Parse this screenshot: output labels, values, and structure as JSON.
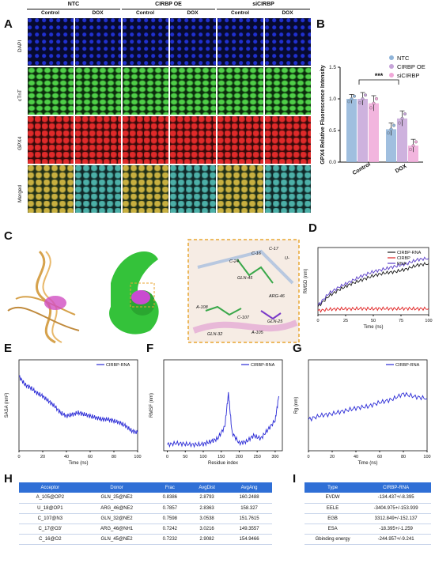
{
  "panels": {
    "a": "A",
    "b": "B",
    "c": "C",
    "d": "D",
    "e": "E",
    "f": "F",
    "g": "G",
    "h": "H",
    "i": "I"
  },
  "microscopy": {
    "groups": [
      "NTC",
      "CIRBP OE",
      "siCIRBP"
    ],
    "columns": [
      "Control",
      "DOX",
      "Control",
      "DOX",
      "Control",
      "DOX"
    ],
    "rows": [
      "DAPI",
      "cTnT",
      "GPX4",
      "Merged"
    ]
  },
  "colors": {
    "ntc": "#8fb4d9",
    "oe": "#c6a4d8",
    "si": "#f0a8d8",
    "rmsd_complex": "#1a1a1a",
    "rmsd_cirbp": "#e02020",
    "rmsd_rna": "#5a3dc8",
    "blue": "#2b2bd6",
    "table_header": "#2f6fd6",
    "dash": "#e8a632"
  },
  "chart_data": [
    {
      "type": "bar",
      "id": "B",
      "ylabel": "GPX4 Relative Fluorescence Intensity",
      "categories": [
        "Control",
        "DOX"
      ],
      "series": [
        {
          "name": "NTC",
          "values": [
            1.0,
            0.52
          ],
          "errors": [
            0.07,
            0.1
          ]
        },
        {
          "name": "CIRBP OE",
          "values": [
            1.0,
            0.69
          ],
          "errors": [
            0.1,
            0.12
          ]
        },
        {
          "name": "siCIRBP",
          "values": [
            0.93,
            0.26
          ],
          "errors": [
            0.12,
            0.1
          ]
        }
      ],
      "ylim": [
        0,
        1.5
      ],
      "yticks": [
        "0.0",
        "0.5",
        "1.0",
        "1.5"
      ],
      "annotation": "***",
      "legend": "top-right"
    },
    {
      "type": "line",
      "id": "D",
      "xlabel": "Time (ns)",
      "ylabel": "RMSD (nm)",
      "xlim": [
        0,
        100
      ],
      "xticks": [
        "0",
        "25",
        "50",
        "75",
        "100"
      ],
      "series": [
        {
          "name": "CIRBP-RNA",
          "x": [
            0,
            10,
            20,
            30,
            40,
            50,
            60,
            70,
            80,
            90,
            100
          ],
          "y": [
            0.3,
            0.7,
            0.95,
            1.15,
            1.3,
            1.45,
            1.55,
            1.6,
            1.7,
            1.85,
            1.9
          ]
        },
        {
          "name": "CIRBP",
          "x": [
            0,
            10,
            20,
            30,
            40,
            50,
            60,
            70,
            80,
            90,
            100
          ],
          "y": [
            0.15,
            0.2,
            0.22,
            0.22,
            0.23,
            0.22,
            0.23,
            0.22,
            0.23,
            0.22,
            0.23
          ]
        },
        {
          "name": "RNA",
          "x": [
            0,
            10,
            20,
            30,
            40,
            50,
            60,
            70,
            80,
            90,
            100
          ],
          "y": [
            0.35,
            0.8,
            1.05,
            1.25,
            1.45,
            1.6,
            1.7,
            1.8,
            1.9,
            2.05,
            2.1
          ]
        }
      ],
      "legend": "top-right"
    },
    {
      "type": "line",
      "id": "E",
      "xlabel": "Time (ns)",
      "ylabel": "SASA (nm²)",
      "xlim": [
        0,
        100
      ],
      "xticks": [
        "0",
        "20",
        "40",
        "60",
        "80",
        "100"
      ],
      "series": [
        {
          "name": "CIRBP-RNA",
          "x": [
            0,
            5,
            10,
            15,
            20,
            25,
            30,
            35,
            40,
            45,
            50,
            55,
            60,
            65,
            70,
            75,
            80,
            85,
            90,
            95,
            100
          ],
          "y": [
            470,
            465,
            463,
            460,
            458,
            455,
            452,
            448,
            446,
            447,
            448,
            447,
            446,
            445,
            444,
            444,
            443,
            442,
            440,
            437,
            436
          ]
        }
      ],
      "legend": "top-right"
    },
    {
      "type": "line",
      "id": "F",
      "xlabel": "Residue index",
      "ylabel": "RMSF (nm)",
      "xticks": [
        "0",
        "50",
        "100",
        "150",
        "200",
        "250",
        "300"
      ],
      "series": [
        {
          "name": "CIRBP-RNA",
          "x": [
            0,
            25,
            50,
            75,
            100,
            120,
            140,
            160,
            170,
            180,
            200,
            220,
            240,
            260,
            280,
            300,
            310
          ],
          "y": [
            0.2,
            0.25,
            0.22,
            0.2,
            0.22,
            0.3,
            0.4,
            0.8,
            1.9,
            0.6,
            0.25,
            0.3,
            0.5,
            0.4,
            0.7,
            1.0,
            1.8
          ]
        }
      ],
      "legend": "top-right"
    },
    {
      "type": "line",
      "id": "G",
      "xlabel": "Time (ns)",
      "ylabel": "Rg (nm)",
      "xlim": [
        0,
        100
      ],
      "xticks": [
        "0",
        "20",
        "40",
        "60",
        "80",
        "100"
      ],
      "series": [
        {
          "name": "CIRBP-RNA",
          "x": [
            0,
            10,
            20,
            30,
            40,
            50,
            60,
            70,
            80,
            90,
            100
          ],
          "y": [
            3.55,
            3.62,
            3.65,
            3.7,
            3.75,
            3.78,
            3.85,
            3.9,
            4.0,
            3.95,
            3.92
          ]
        }
      ],
      "legend": "top-right"
    },
    {
      "type": "table",
      "id": "H",
      "columns": [
        "Acceptor",
        "Donor",
        "Frac",
        "AvgDist",
        "AvgAng"
      ],
      "rows": [
        [
          "A_105@OP2",
          "GLN_25@NE2",
          "0.8386",
          "2.8793",
          "160.2488"
        ],
        [
          "U_18@OP1",
          "ARG_46@NE2",
          "0.7857",
          "2.8363",
          "158.327"
        ],
        [
          "C_107@N3",
          "GLN_32@NE2",
          "0.7598",
          "3.0538",
          "151.7615"
        ],
        [
          "C_17@O3'",
          "ARG_46@NH1",
          "0.7242",
          "3.0216",
          "149.3557"
        ],
        [
          "C_16@O2",
          "GLN_45@NE2",
          "0.7232",
          "2.9082",
          "154.9466"
        ]
      ]
    },
    {
      "type": "table",
      "id": "I",
      "columns": [
        "Type",
        "CIRBP-RNA"
      ],
      "rows": [
        [
          "EVDW",
          "-134.437+/-8.395"
        ],
        [
          "EELE",
          "-3404.975+/-153.939"
        ],
        [
          "EGB",
          "3312.849+/-152.137"
        ],
        [
          "ESA",
          "-18.395+/-1.259"
        ],
        [
          "Gbinding energy",
          "-244.957+/-9.241"
        ]
      ]
    }
  ],
  "structure_labels": [
    "C-16",
    "C-17",
    "U-",
    "C-24",
    "GLN-45",
    "ARG-46",
    "A-108",
    "C-107",
    "GLN-25",
    "GLN-32",
    "A-105"
  ]
}
